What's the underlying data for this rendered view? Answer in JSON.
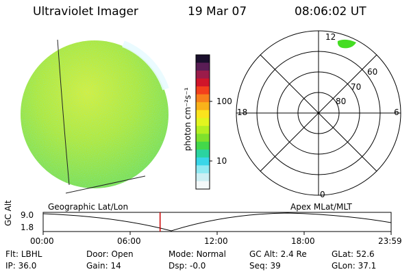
{
  "header": {
    "instrument": "Ultraviolet Imager",
    "date": "19 Mar 07",
    "time": "08:06:02 UT"
  },
  "colorbar": {
    "unit_label": "photon cm⁻²s⁻¹",
    "tick_labels": [
      "100",
      "10"
    ],
    "scale": "log",
    "colors_top_to_bottom": [
      "#1a0f2c",
      "#5a1d55",
      "#9b1c4a",
      "#d0152a",
      "#f3401c",
      "#f7801c",
      "#f9b21a",
      "#fbe41d",
      "#e2f51f",
      "#b4ef22",
      "#7fe12c",
      "#43d84a",
      "#2bd4a0",
      "#39d6e8",
      "#8fe9f2",
      "#cdeff4",
      "#f4f9fa"
    ]
  },
  "geo_panel": {
    "label": "Geographic Lat/Lon",
    "fill_color": "#a8e83a"
  },
  "polar_plot": {
    "label": "Apex MLat/MLT",
    "mlt_labels": {
      "top": "12",
      "left": "18",
      "right": "6",
      "bottom": "0"
    },
    "mlat_labels": [
      "60",
      "70",
      "80"
    ],
    "aurora_color": "#44dd22"
  },
  "altitude_timeline": {
    "axis_label": "GC Alt",
    "y_labels": [
      "9.0",
      "1.8"
    ],
    "time_labels": [
      "00:00",
      "06:00",
      "12:00",
      "18:00",
      "23:59"
    ],
    "current_time_fraction": 0.336,
    "marker_color": "#cc0000"
  },
  "status": {
    "row1": [
      {
        "label": "Flt:",
        "value": "LBHL"
      },
      {
        "label": "Door:",
        "value": "Open"
      },
      {
        "label": "Mode:",
        "value": "Normal"
      },
      {
        "label": "GC Alt:",
        "value": "2.4 Re"
      },
      {
        "label": "GLat:",
        "value": "52.6"
      }
    ],
    "row2": [
      {
        "label": "IP:",
        "value": "36.0"
      },
      {
        "label": "Gain:",
        "value": "14"
      },
      {
        "label": "Dsp:",
        "value": "-0.0"
      },
      {
        "label": "Seq:",
        "value": "39"
      },
      {
        "label": "GLon:",
        "value": "37.1"
      }
    ]
  }
}
